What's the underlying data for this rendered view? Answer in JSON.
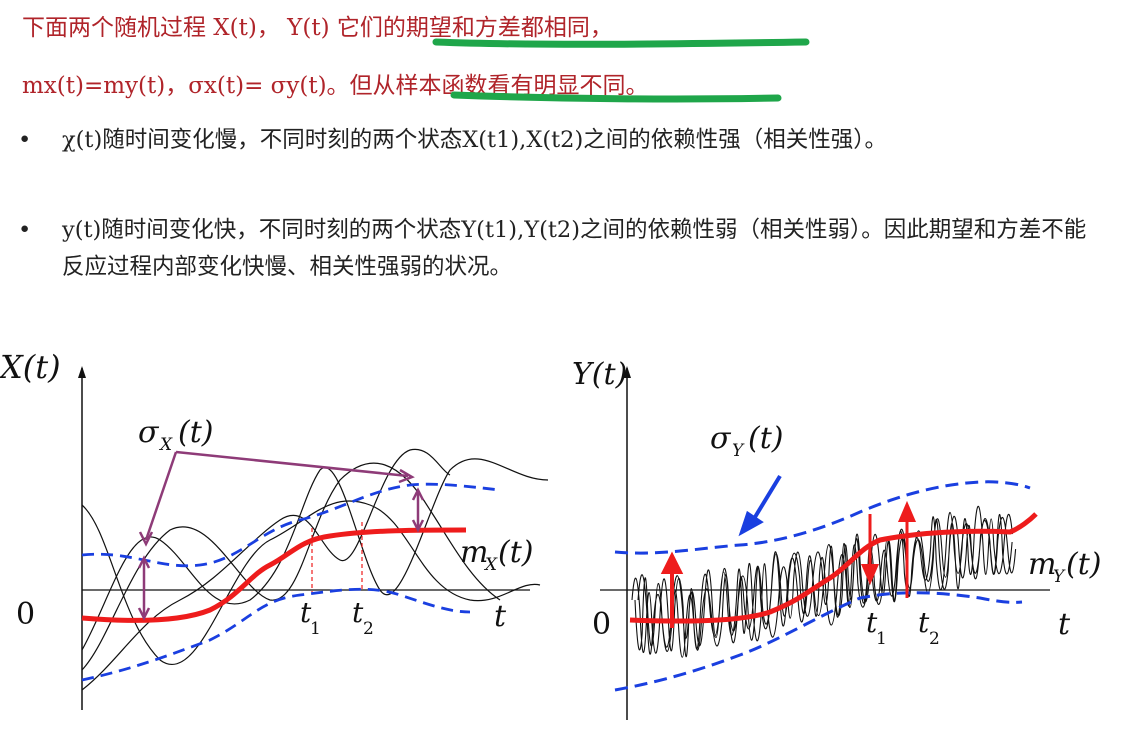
{
  "header": {
    "line1": "下面两个随机过程 X(t)， Y(t) 它们的期望和方差都相同，",
    "line2": "mx(t)=my(t)，σx(t)= σy(t)。但从样本函数看有明显不同。"
  },
  "bullets": [
    {
      "marker": "•",
      "text": "χ(t)随时间变化慢，不同时刻的两个状态X(t1),X(t2)之间的依赖性强（相关性强）。"
    },
    {
      "marker": "•",
      "text": "y(t)随时间变化快，不同时刻的两个状态Y(t1),Y(t2)之间的依赖性弱（相关性弱）。因此期望和方差不能反应过程内部变化快慢、相关性强弱的状况。"
    }
  ],
  "left_plot": {
    "ylabel": "X(t)",
    "sigma_label": "σ",
    "sigma_sub": "X",
    "sigma_arg": "(t)",
    "mean_label": "m",
    "mean_sub": "X",
    "mean_arg": "(t)",
    "zero": "0",
    "xlabel": "t",
    "t1": "t",
    "t1_sub": "1",
    "t2": "t",
    "t2_sub": "2"
  },
  "right_plot": {
    "ylabel": "Y(t)",
    "sigma_label": "σ",
    "sigma_sub": "Y",
    "sigma_arg": "(t)",
    "mean_label": "m",
    "mean_sub": "Y",
    "mean_arg": "(t)",
    "zero": "0",
    "xlabel": "t",
    "t1": "t",
    "t1_sub": "1",
    "t2": "t",
    "t2_sub": "2"
  },
  "colors": {
    "header_red": "#b0242a",
    "highlight_green": "#1fa64a",
    "mean_red": "#ee1c1c",
    "sigma_blue": "#1a3fe0",
    "annot_purple": "#8e3b78",
    "sample_black": "#111111"
  }
}
